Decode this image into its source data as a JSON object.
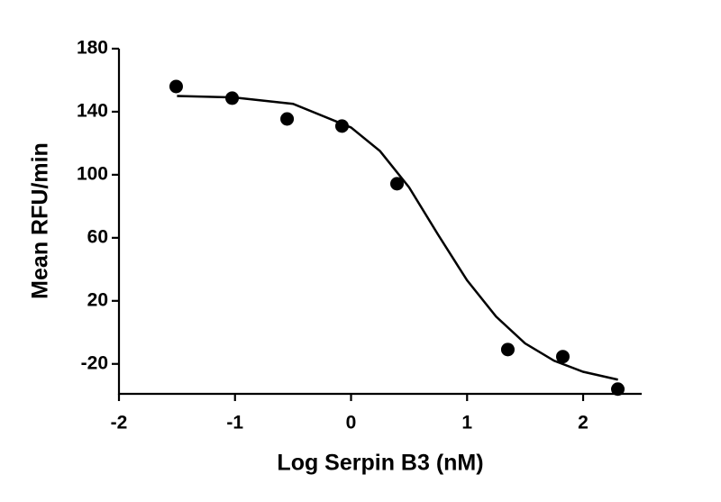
{
  "chart_data": {
    "type": "scatter",
    "x_label": "Log Serpin B3 (nM)",
    "y_label": "Mean RFU/min",
    "x": [
      -1.507,
      -1.025,
      -0.551,
      -0.078,
      0.396,
      1.351,
      1.825,
      2.299
    ],
    "values": [
      156,
      148.6,
      135.4,
      130.9,
      94.3,
      -10.9,
      -15.4,
      -36
    ],
    "color": "#000000",
    "curve": {
      "x": [
        -1.5,
        -1,
        -0.5,
        0,
        0.25,
        0.5,
        0.75,
        1,
        1.25,
        1.5,
        1.75,
        2,
        2.3
      ],
      "values": [
        150,
        149,
        145,
        130,
        115,
        92,
        62,
        33,
        10,
        -7,
        -18,
        -25,
        -30
      ]
    },
    "xlim": [
      -2,
      2.5
    ],
    "xticks": [
      -2,
      -1,
      0,
      1,
      2
    ],
    "ylim": [
      -39,
      180
    ],
    "yticks": [
      -20,
      20,
      60,
      100,
      140,
      180
    ],
    "grid": false
  }
}
